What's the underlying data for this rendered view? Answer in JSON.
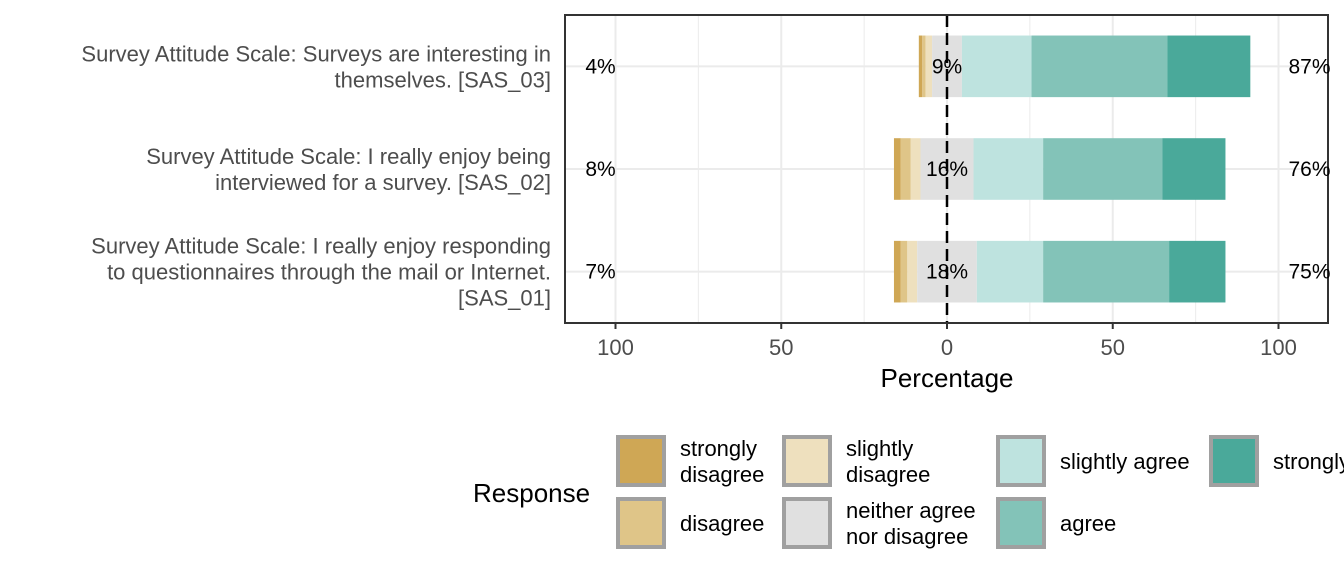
{
  "chart_data": {
    "type": "bar",
    "subtype": "diverging-stacked-percent",
    "xlabel": "Percentage",
    "xlim": [
      -100,
      100
    ],
    "x_ticks": [
      {
        "value": -100,
        "label": "100"
      },
      {
        "value": -50,
        "label": "50"
      },
      {
        "value": 0,
        "label": "0"
      },
      {
        "value": 50,
        "label": "50"
      },
      {
        "value": 100,
        "label": "100"
      }
    ],
    "grid": true,
    "levels": [
      {
        "name": "strongly\ndisagree",
        "color": "#CFA755"
      },
      {
        "name": "disagree",
        "color": "#DFC588"
      },
      {
        "name": "slightly\ndisagree",
        "color": "#EEE0BE"
      },
      {
        "name": "neither agree\nnor disagree",
        "color": "#E0E0E0"
      },
      {
        "name": "slightly agree",
        "color": "#BEE3DF"
      },
      {
        "name": "agree",
        "color": "#83C3B8"
      },
      {
        "name": "strongly agree",
        "color": "#4AA99A"
      }
    ],
    "items": [
      {
        "label": "Survey Attitude Scale: Surveys are interesting in\nthemselves. [SAS_03]",
        "values": [
          1,
          1,
          2,
          9,
          21,
          41,
          25
        ],
        "low_pct": "4%",
        "neutral_pct": "9%",
        "high_pct": "87%"
      },
      {
        "label": "Survey Attitude Scale: I really enjoy being\ninterviewed for a survey. [SAS_02]",
        "values": [
          2,
          3,
          3,
          16,
          21,
          36,
          19
        ],
        "low_pct": "8%",
        "neutral_pct": "16%",
        "high_pct": "76%"
      },
      {
        "label": "Survey Attitude Scale: I really enjoy responding\nto questionnaires through the mail or Internet.\n[SAS_01]",
        "values": [
          2,
          2,
          3,
          18,
          20,
          38,
          17
        ],
        "low_pct": "7%",
        "neutral_pct": "18%",
        "high_pct": "75%"
      }
    ],
    "legend": {
      "title": "Response",
      "position": "bottom"
    }
  }
}
